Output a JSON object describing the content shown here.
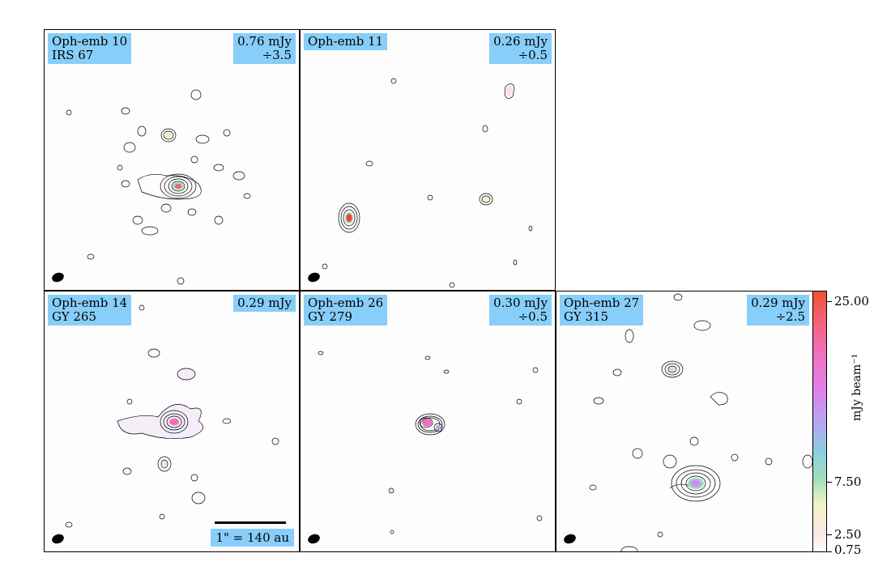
{
  "panels": [
    {
      "name": "Oph-emb 10",
      "alias": "IRS 67",
      "rms": "0.76 mJy",
      "scale": "÷3.5"
    },
    {
      "name": "Oph-emb 11",
      "alias": "",
      "rms": "0.26 mJy",
      "scale": "÷0.5"
    },
    {
      "name": "Oph-emb 14",
      "alias": "GY 265",
      "rms": "0.29 mJy",
      "scale": ""
    },
    {
      "name": "Oph-emb 26",
      "alias": "GY 279",
      "rms": "0.30 mJy",
      "scale": "÷0.5"
    },
    {
      "name": "Oph-emb 27",
      "alias": "GY 315",
      "rms": "0.29 mJy",
      "scale": "÷2.5"
    }
  ],
  "scalebar": {
    "label": "1\" = 140 au"
  },
  "colorbar": {
    "title": "mJy beam⁻¹",
    "ticks": [
      "25.00",
      "7.50",
      "2.50",
      "0.75"
    ],
    "colors": {
      "low": "#ffffff",
      "mid": "#9fe0b8",
      "high": "#f05030"
    }
  }
}
